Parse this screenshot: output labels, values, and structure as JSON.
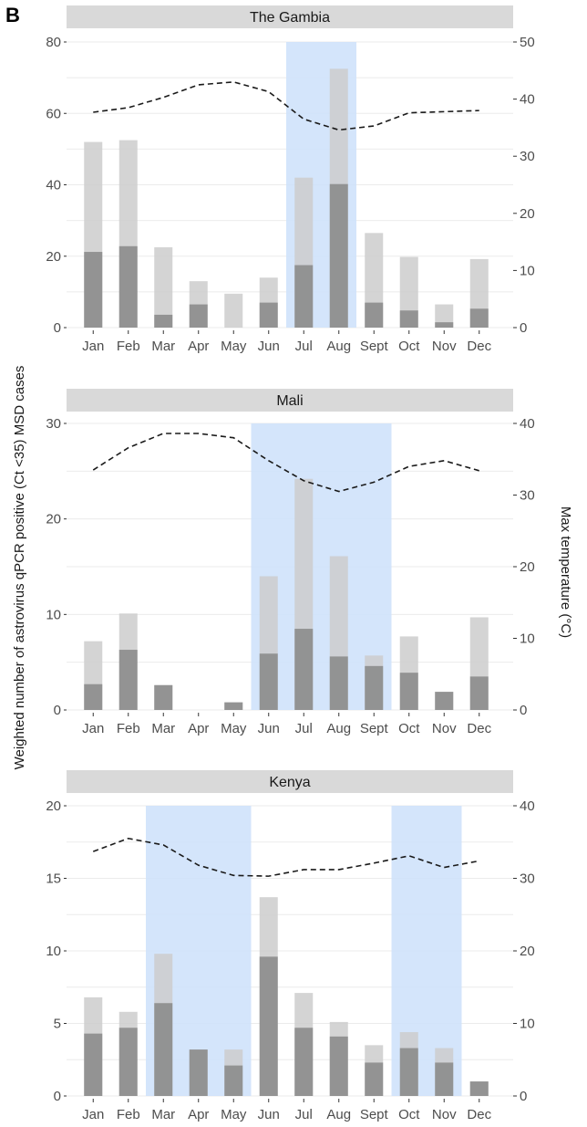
{
  "figure": {
    "panel_letter": "B",
    "y_axis_label": "Weighted number of astrovirus qPCR positive (Ct <35) MSD cases",
    "y2_axis_label": "Max temperature (°C)"
  },
  "colors": {
    "bar_total": "#cccccc",
    "bar_dark": "#8c8c8c",
    "season_shade": "#cfe2fb",
    "strip_bg": "#d9d9d9",
    "gridline": "#ebebeb",
    "temperature_line": "#1a1a1a"
  },
  "chart_data": [
    {
      "type": "bar",
      "title": "The Gambia",
      "categories": [
        "Jan",
        "Feb",
        "Mar",
        "Apr",
        "May",
        "Jun",
        "Jul",
        "Aug",
        "Sept",
        "Oct",
        "Nov",
        "Dec"
      ],
      "series": [
        {
          "values": [
            52,
            52.5,
            22.5,
            13,
            9.5,
            14,
            42,
            72.5,
            26.5,
            19.8,
            6.5,
            19.2
          ]
        },
        {
          "values": [
            21.2,
            22.8,
            3.6,
            6.5,
            0,
            7,
            17.5,
            40.2,
            7,
            4.8,
            1.5,
            5.3
          ]
        }
      ],
      "temperature": [
        37.7,
        38.5,
        40.3,
        42.5,
        43,
        41.3,
        36.5,
        34.6,
        35.3,
        37.6,
        37.8,
        38
      ],
      "shaded_months": [
        [
          "Jul",
          "Aug"
        ]
      ],
      "ylim": [
        0,
        80
      ],
      "yticks": [
        0,
        20,
        40,
        60,
        80
      ],
      "y2lim": [
        0,
        50
      ],
      "y2ticks": [
        0,
        10,
        20,
        30,
        40,
        50
      ]
    },
    {
      "type": "bar",
      "title": "Mali",
      "categories": [
        "Jan",
        "Feb",
        "Mar",
        "Apr",
        "May",
        "Jun",
        "Jul",
        "Aug",
        "Sept",
        "Oct",
        "Nov",
        "Dec"
      ],
      "series": [
        {
          "values": [
            7.2,
            10.1,
            2.6,
            0,
            0.8,
            14,
            24.2,
            16.1,
            5.7,
            7.7,
            1.9,
            9.7
          ]
        },
        {
          "values": [
            2.7,
            6.3,
            2.6,
            0,
            0.8,
            5.9,
            8.5,
            5.6,
            4.6,
            3.9,
            1.9,
            3.5
          ]
        }
      ],
      "temperature": [
        33.5,
        36.6,
        38.6,
        38.6,
        38,
        34.8,
        32,
        30.5,
        31.8,
        34,
        34.8,
        33.4
      ],
      "shaded_months": [
        [
          "Jun",
          "Sept"
        ]
      ],
      "ylim": [
        0,
        30
      ],
      "yticks": [
        0,
        10,
        20,
        30
      ],
      "y2lim": [
        0,
        40
      ],
      "y2ticks": [
        0,
        10,
        20,
        30,
        40
      ]
    },
    {
      "type": "bar",
      "title": "Kenya",
      "categories": [
        "Jan",
        "Feb",
        "Mar",
        "Apr",
        "May",
        "Jun",
        "Jul",
        "Aug",
        "Sept",
        "Oct",
        "Nov",
        "Dec"
      ],
      "series": [
        {
          "values": [
            6.8,
            5.8,
            9.8,
            3.2,
            3.2,
            13.7,
            7.1,
            5.1,
            3.5,
            4.4,
            3.3,
            1
          ]
        },
        {
          "values": [
            4.3,
            4.7,
            6.4,
            3.2,
            2.1,
            9.6,
            4.7,
            4.1,
            2.3,
            3.3,
            2.3,
            1
          ]
        }
      ],
      "temperature": [
        33.7,
        35.5,
        34.6,
        31.8,
        30.4,
        30.3,
        31.2,
        31.2,
        32.1,
        33.1,
        31.5,
        32.4
      ],
      "shaded_months": [
        [
          "Mar",
          "May"
        ],
        [
          "Oct",
          "Nov"
        ]
      ],
      "ylim": [
        0,
        20
      ],
      "yticks": [
        0,
        5,
        10,
        15,
        20
      ],
      "y2lim": [
        0,
        40
      ],
      "y2ticks": [
        0,
        10,
        20,
        30,
        40
      ]
    }
  ]
}
